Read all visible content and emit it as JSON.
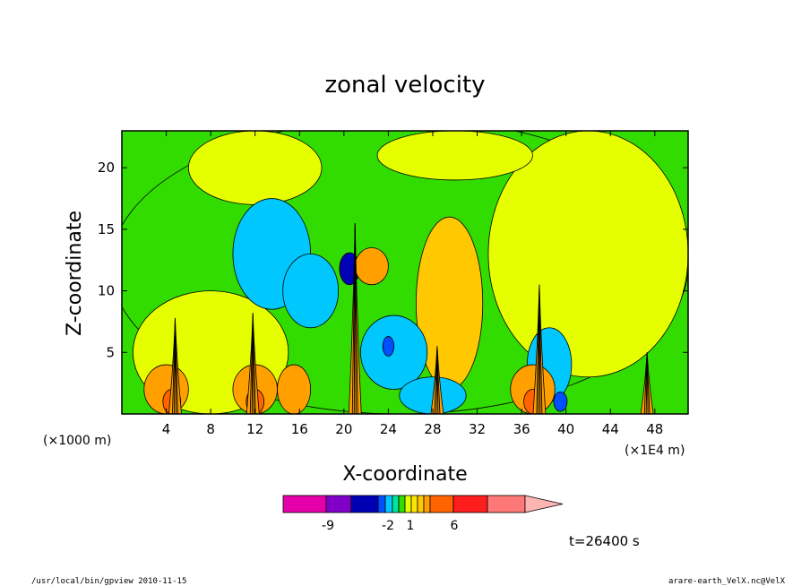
{
  "chart_data": {
    "type": "heatmap",
    "title": "zonal velocity",
    "xlabel": "X-coordinate",
    "ylabel": "Z-coordinate",
    "x_unit_left": "(×1000 m)",
    "x_unit_right": "(×1E4 m)",
    "xlim": [
      0,
      51
    ],
    "ylim": [
      0,
      23
    ],
    "x_ticks": [
      "4",
      "8",
      "12",
      "16",
      "20",
      "24",
      "28",
      "32",
      "36",
      "40",
      "44",
      "48"
    ],
    "y_ticks": [
      "5",
      "10",
      "15",
      "20"
    ],
    "colorbar": {
      "colors": [
        "#e600aa",
        "#8000c8",
        "#0000b4",
        "#0050ff",
        "#00c8ff",
        "#00e6a0",
        "#32dc00",
        "#e6ff00",
        "#ffe600",
        "#ffc800",
        "#ffa000",
        "#ff6400",
        "#ff1e1e",
        "#ff7878",
        "#ffb4b4"
      ],
      "labels": [
        "-9",
        "-2",
        "1",
        "6"
      ]
    },
    "regions": [
      {
        "color": "#32dc00",
        "cx": 25,
        "cy": 12,
        "rx": 26,
        "ry": 12
      },
      {
        "color": "#e6ff00",
        "cx": 42,
        "cy": 13,
        "rx": 9,
        "ry": 10
      },
      {
        "color": "#e6ff00",
        "cx": 8,
        "cy": 5,
        "rx": 7,
        "ry": 5
      },
      {
        "color": "#e6ff00",
        "cx": 12,
        "cy": 20,
        "rx": 6,
        "ry": 3
      },
      {
        "color": "#e6ff00",
        "cx": 30,
        "cy": 21,
        "rx": 7,
        "ry": 2
      },
      {
        "color": "#ffc800",
        "cx": 29.5,
        "cy": 9,
        "rx": 3,
        "ry": 7
      },
      {
        "color": "#00c8ff",
        "cx": 13.5,
        "cy": 13,
        "rx": 3.5,
        "ry": 4.5
      },
      {
        "color": "#00c8ff",
        "cx": 17,
        "cy": 10,
        "rx": 2.5,
        "ry": 3
      },
      {
        "color": "#00c8ff",
        "cx": 24.5,
        "cy": 5,
        "rx": 3,
        "ry": 3
      },
      {
        "color": "#00c8ff",
        "cx": 28,
        "cy": 1.5,
        "rx": 3,
        "ry": 1.5
      },
      {
        "color": "#00c8ff",
        "cx": 38.5,
        "cy": 4,
        "rx": 2,
        "ry": 3
      },
      {
        "color": "#0000b4",
        "cx": 20.5,
        "cy": 11.8,
        "rx": 0.9,
        "ry": 1.3
      },
      {
        "color": "#0050ff",
        "cx": 24,
        "cy": 5.5,
        "rx": 0.5,
        "ry": 0.8
      },
      {
        "color": "#0050ff",
        "cx": 39.5,
        "cy": 1,
        "rx": 0.6,
        "ry": 0.8
      },
      {
        "color": "#ffa000",
        "cx": 22.5,
        "cy": 12,
        "rx": 1.5,
        "ry": 1.5
      },
      {
        "color": "#ffa000",
        "cx": 4,
        "cy": 2,
        "rx": 2,
        "ry": 2
      },
      {
        "color": "#ffa000",
        "cx": 12,
        "cy": 2,
        "rx": 2,
        "ry": 2
      },
      {
        "color": "#ffa000",
        "cx": 37,
        "cy": 2,
        "rx": 2,
        "ry": 2
      },
      {
        "color": "#ffa000",
        "cx": 15.5,
        "cy": 2,
        "rx": 1.5,
        "ry": 2
      },
      {
        "color": "#ff6400",
        "cx": 4.5,
        "cy": 1,
        "rx": 0.8,
        "ry": 1
      },
      {
        "color": "#ff6400",
        "cx": 12,
        "cy": 1,
        "rx": 0.8,
        "ry": 1
      },
      {
        "color": "#ff6400",
        "cx": 37,
        "cy": 1,
        "rx": 0.8,
        "ry": 1
      }
    ],
    "plumes": [
      {
        "x": 4.8,
        "top": 7.8
      },
      {
        "x": 11.8,
        "top": 8.2
      },
      {
        "x": 21,
        "top": 15.5
      },
      {
        "x": 37.6,
        "top": 10.5
      },
      {
        "x": 28.4,
        "top": 5.5
      },
      {
        "x": 47.3,
        "top": 5.0
      }
    ]
  },
  "footer": {
    "time": "t=26400 s",
    "left": "/usr/local/bin/gpview   2010-11-15",
    "right": "arare-earth_VelX.nc@VelX"
  }
}
